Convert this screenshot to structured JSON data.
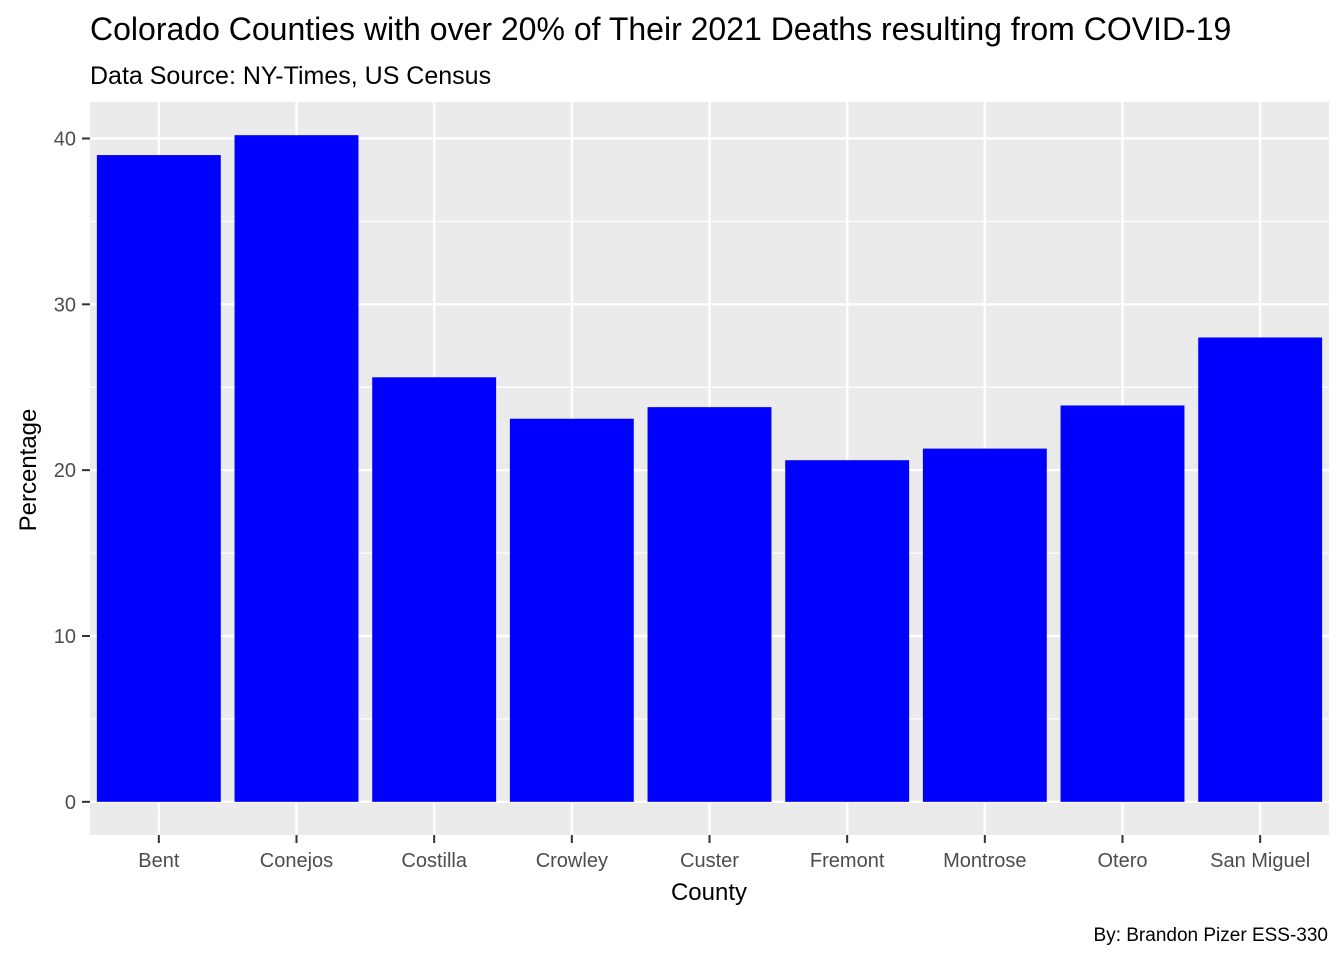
{
  "chart_data": {
    "type": "bar",
    "title": "Colorado Counties with over 20% of Their 2021 Deaths resulting from COVID-19",
    "subtitle": "Data Source: NY-Times, US Census",
    "caption": "By: Brandon Pizer ESS-330",
    "xlabel": "County",
    "ylabel": "Percentage",
    "categories": [
      "Bent",
      "Conejos",
      "Costilla",
      "Crowley",
      "Custer",
      "Fremont",
      "Montrose",
      "Otero",
      "San Miguel"
    ],
    "values": [
      39.0,
      40.2,
      25.6,
      23.1,
      23.8,
      20.6,
      21.3,
      23.9,
      28.0
    ],
    "ylim": [
      -2.0,
      42.2
    ],
    "yticks": [
      0,
      10,
      20,
      30,
      40
    ],
    "ytick_labels": [
      "0",
      "10",
      "20",
      "30",
      "40"
    ],
    "grid": true,
    "bar_color": "#0000ff",
    "panel_background": "#ebebeb",
    "grid_color": "#ffffff"
  }
}
